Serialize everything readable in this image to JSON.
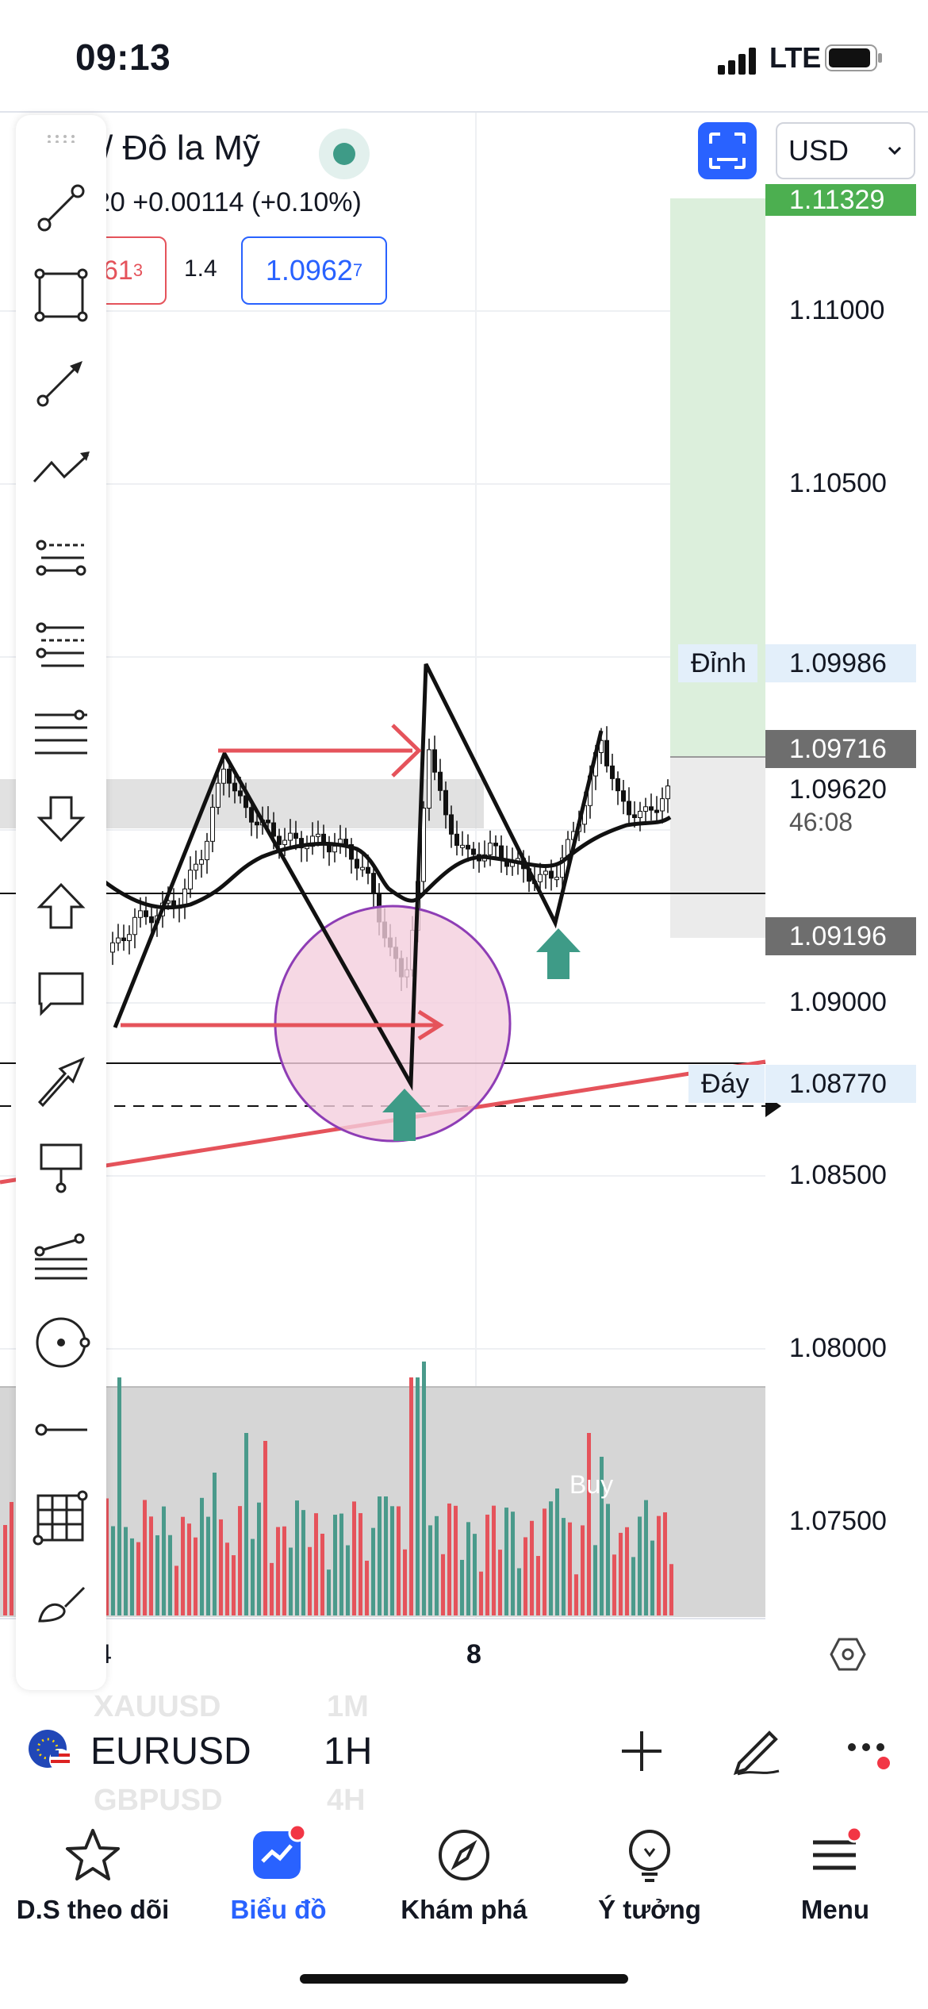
{
  "status": {
    "time": "09:13",
    "network": "LTE"
  },
  "header": {
    "title": "/ Đô la Mỹ",
    "change": "20  +0.00114 (+0.10%)",
    "sell_price": "61",
    "sell_price_sup": "3",
    "spread": "1.4",
    "buy_price": "1.0962",
    "buy_price_sup": "7",
    "currency": "USD"
  },
  "price_axis": [
    "1.11000",
    "1.10500",
    "1.09000",
    "1.08500",
    "1.08000",
    "1.07500"
  ],
  "price_tags": {
    "top": "1.11329",
    "peak_label": "Đỉnh",
    "peak": "1.09986",
    "current": "1.09716",
    "last": "1.09620",
    "countdown": "46:08",
    "stop": "1.09196",
    "bottom_label": "Đáy",
    "bottom": "1.08770"
  },
  "time_axis": {
    "left": "4",
    "mid": "8"
  },
  "volume_label": "Buy",
  "symbol_bar": {
    "symbol": "EURUSD",
    "interval": "1H",
    "ghost_above_symbol": "XAUUSD",
    "ghost_above_interval": "1M",
    "ghost_below_symbol": "GBPUSD",
    "ghost_below_interval": "4H"
  },
  "nav": [
    {
      "label": "D.S theo dõi",
      "icon": "star-icon",
      "active": false
    },
    {
      "label": "Biểu đồ",
      "icon": "chart-icon",
      "active": true
    },
    {
      "label": "Khám phá",
      "icon": "compass-icon",
      "active": false
    },
    {
      "label": "Ý tưởng",
      "icon": "lightbulb-icon",
      "active": false
    },
    {
      "label": "Menu",
      "icon": "menu-icon",
      "active": false
    }
  ],
  "colors": {
    "up": "#4a9a8b",
    "down": "#e5535b",
    "accent": "#2962ff",
    "profit_zone": "#dcefdc"
  }
}
